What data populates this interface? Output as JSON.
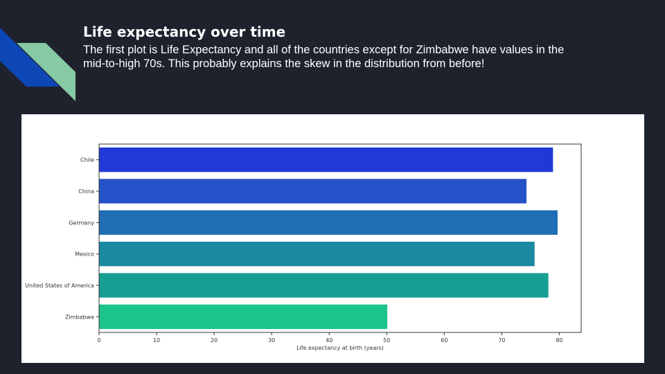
{
  "slide": {
    "title": "Life expectancy over time",
    "body": "The first plot is Life Expectancy and all of the countries except for Zimbabwe have values in the mid-to-high 70s. This probably explains the skew in the distribution from before!"
  },
  "colors": {
    "background": "#1e222d",
    "deco_blue": "#0d47b5",
    "deco_green": "#86c9a5"
  },
  "chart_data": {
    "type": "bar",
    "orientation": "horizontal",
    "categories": [
      "Chile",
      "China",
      "Germany",
      "Mexico",
      "United States of America",
      "Zimbabwe"
    ],
    "values": [
      78.9,
      74.3,
      79.7,
      75.7,
      78.1,
      50.1
    ],
    "colors": [
      "#2139d6",
      "#2452c8",
      "#1f6db2",
      "#1a8aa2",
      "#179f94",
      "#1dc48a"
    ],
    "xlabel": "Life expectancy at birth (years)",
    "ylabel": "",
    "xlim": [
      0,
      83.8
    ],
    "xticks": [
      0,
      10,
      20,
      30,
      40,
      50,
      60,
      70,
      80
    ],
    "grid": false,
    "legend": "none"
  }
}
